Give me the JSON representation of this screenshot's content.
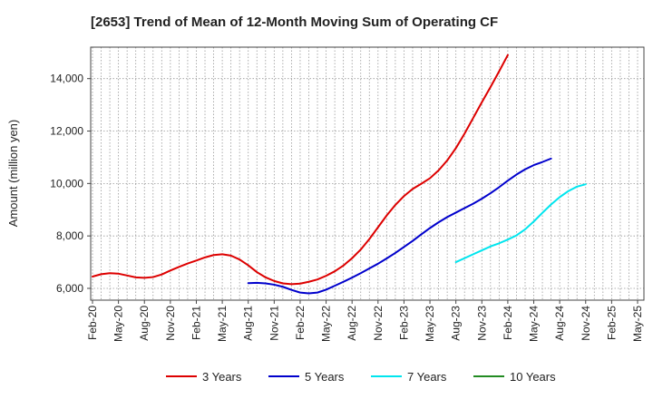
{
  "chart_data": {
    "type": "line",
    "title": "[2653]  Trend of Mean of 12-Month Moving Sum of Operating CF",
    "xlabel": "",
    "ylabel": "Amount (million yen)",
    "ylim": [
      5550,
      15200
    ],
    "yticks": [
      6000,
      8000,
      10000,
      12000,
      14000
    ],
    "ytick_labels": [
      "6,000",
      "8,000",
      "10,000",
      "12,000",
      "14,000"
    ],
    "xtick_labels": [
      "Feb-20",
      "May-20",
      "Aug-20",
      "Nov-20",
      "Feb-21",
      "May-21",
      "Aug-21",
      "Nov-21",
      "Feb-22",
      "May-22",
      "Aug-22",
      "Nov-22",
      "Feb-23",
      "May-23",
      "Aug-23",
      "Nov-23",
      "Feb-24",
      "May-24",
      "Aug-24",
      "Nov-24",
      "Feb-25",
      "May-25"
    ],
    "grid": true,
    "legend_position": "bottom",
    "series": [
      {
        "name": "3 Years",
        "color": "#dd0000",
        "start_index": 0,
        "values": [
          6450,
          6540,
          6580,
          6560,
          6490,
          6420,
          6400,
          6430,
          6530,
          6680,
          6820,
          6950,
          7060,
          7180,
          7270,
          7300,
          7250,
          7100,
          6880,
          6620,
          6420,
          6280,
          6190,
          6160,
          6180,
          6250,
          6340,
          6480,
          6650,
          6870,
          7150,
          7480,
          7880,
          8330,
          8780,
          9180,
          9520,
          9790,
          9990,
          10200,
          10500,
          10880,
          11350,
          11900,
          12500,
          13100,
          13680,
          14280,
          14900
        ]
      },
      {
        "name": "5 Years",
        "color": "#0000cc",
        "start_index": 18,
        "values": [
          6200,
          6210,
          6190,
          6140,
          6060,
          5940,
          5840,
          5810,
          5840,
          5950,
          6100,
          6250,
          6410,
          6580,
          6760,
          6940,
          7140,
          7350,
          7580,
          7810,
          8060,
          8300,
          8520,
          8720,
          8890,
          9060,
          9230,
          9420,
          9630,
          9860,
          10110,
          10340,
          10540,
          10700,
          10820,
          10950
        ]
      },
      {
        "name": "7 Years",
        "color": "#00e5ee",
        "start_index": 42,
        "values": [
          7000,
          7150,
          7300,
          7450,
          7600,
          7720,
          7860,
          8020,
          8250,
          8550,
          8880,
          9200,
          9480,
          9710,
          9880,
          9970
        ]
      },
      {
        "name": "10 Years",
        "color": "#228b22",
        "start_index": 0,
        "values": []
      }
    ]
  }
}
